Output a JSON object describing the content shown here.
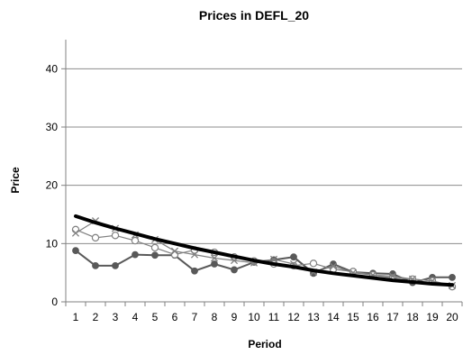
{
  "chart_data": {
    "type": "line",
    "title": "Prices in DEFL_20",
    "xlabel": "Period",
    "ylabel": "Price",
    "x": [
      1,
      2,
      3,
      4,
      5,
      6,
      7,
      8,
      9,
      10,
      11,
      12,
      13,
      14,
      15,
      16,
      17,
      18,
      19,
      20
    ],
    "ylim": [
      0,
      45
    ],
    "yticks": [
      0,
      10,
      20,
      30,
      40
    ],
    "grid": "horizontal",
    "legend": "none",
    "series": [
      {
        "marker": "line-thick",
        "color": "#000000",
        "values": [
          14.7,
          13.6,
          12.6,
          11.7,
          10.8,
          10.0,
          9.2,
          8.5,
          7.8,
          7.1,
          6.5,
          6.0,
          5.4,
          4.9,
          4.5,
          4.1,
          3.7,
          3.4,
          3.1,
          2.9
        ]
      },
      {
        "marker": "filled-circle",
        "color": "#595959",
        "values": [
          8.8,
          6.2,
          6.2,
          8.1,
          8.0,
          8.0,
          5.3,
          6.5,
          5.5,
          6.8,
          7.2,
          7.7,
          4.9,
          6.5,
          5.1,
          4.9,
          4.8,
          3.3,
          4.2,
          4.2
        ]
      },
      {
        "marker": "open-circle",
        "color": "#808080",
        "values": [
          12.4,
          11.0,
          11.4,
          10.5,
          9.3,
          8.1,
          8.9,
          8.5,
          7.7,
          7.0,
          6.5,
          6.2,
          6.6,
          5.6,
          5.2,
          4.6,
          4.1,
          3.9,
          3.6,
          2.6
        ]
      },
      {
        "marker": "x",
        "color": "#808080",
        "values": [
          11.8,
          13.9,
          12.6,
          11.5,
          10.7,
          8.7,
          8.1,
          7.5,
          7.1,
          6.7,
          7.3,
          6.5,
          5.1,
          6.1,
          5.0,
          4.6,
          4.4,
          3.9,
          3.6,
          2.8
        ]
      }
    ]
  }
}
